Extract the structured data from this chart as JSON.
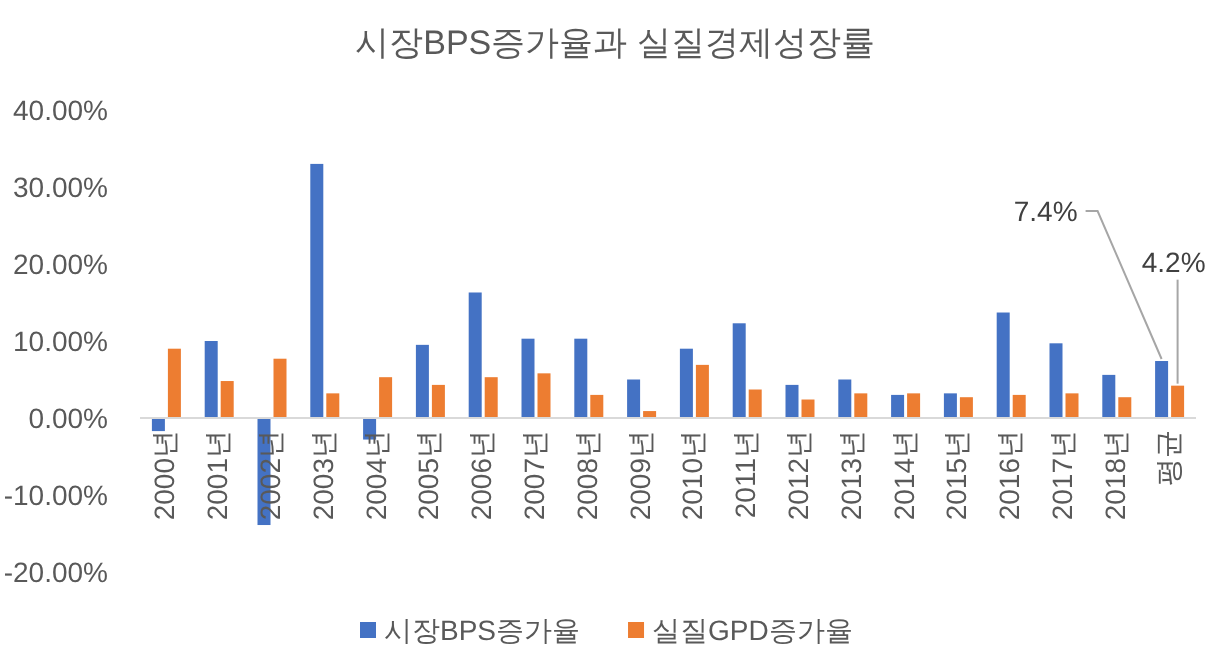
{
  "chart_data": {
    "type": "bar",
    "title": "시장BPS증가율과 실질경제성장률",
    "categories": [
      "2000년",
      "2001년",
      "2002년",
      "2003년",
      "2004년",
      "2005년",
      "2006년",
      "2007년",
      "2008년",
      "2009년",
      "2010년",
      "2011년",
      "2012년",
      "2013년",
      "2014년",
      "2015년",
      "2016년",
      "2017년",
      "2018년",
      "평균"
    ],
    "series": [
      {
        "name": "시장BPS증가율",
        "color": "#4472c4",
        "values": [
          -1.7,
          10.0,
          -13.9,
          33.0,
          -2.8,
          9.5,
          16.3,
          10.3,
          10.3,
          5.0,
          9.0,
          12.3,
          4.3,
          5.0,
          3.0,
          3.2,
          13.7,
          9.7,
          5.6,
          7.4
        ],
        "value_labels": [
          null,
          null,
          null,
          null,
          null,
          null,
          null,
          null,
          null,
          null,
          null,
          null,
          null,
          null,
          null,
          null,
          null,
          null,
          null,
          "7.4%"
        ]
      },
      {
        "name": "실질GPD증가율",
        "color": "#ed7d31",
        "values": [
          9.0,
          4.8,
          7.7,
          3.2,
          5.3,
          4.3,
          5.3,
          5.8,
          3.0,
          0.9,
          6.9,
          3.7,
          2.4,
          3.2,
          3.2,
          2.7,
          3.0,
          3.2,
          2.7,
          4.2
        ],
        "value_labels": [
          null,
          null,
          null,
          null,
          null,
          null,
          null,
          null,
          null,
          null,
          null,
          null,
          null,
          null,
          null,
          null,
          null,
          null,
          null,
          "4.2%"
        ]
      }
    ],
    "ylim": [
      -20,
      40
    ],
    "yticks": [
      {
        "value": -20,
        "label": "-20.00%"
      },
      {
        "value": -10,
        "label": "-10.00%"
      },
      {
        "value": 0,
        "label": "0.00%"
      },
      {
        "value": 10,
        "label": "10.00%"
      },
      {
        "value": 20,
        "label": "20.00%"
      },
      {
        "value": 30,
        "label": "30.00%"
      },
      {
        "value": 40,
        "label": "40.00%"
      }
    ],
    "grid": false,
    "legend": "bottom"
  }
}
